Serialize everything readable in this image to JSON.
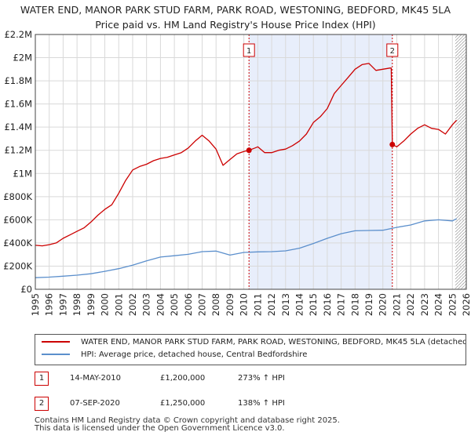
{
  "title_line1": "WATER END, MANOR PARK STUD FARM, PARK ROAD, WESTONING, BEDFORD, MK45 5LA",
  "title_line2": "Price paid vs. HM Land Registry's House Price Index (HPI)",
  "chart_data": {
    "type": "line",
    "title": "WATER END, MANOR PARK STUD FARM, PARK ROAD, WESTONING, BEDFORD, MK45 5LA — Price paid vs. HM Land Registry's House Price Index (HPI)",
    "xlabel": "",
    "ylabel": "",
    "xlim": [
      1995,
      2026
    ],
    "ylim": [
      0,
      2200000
    ],
    "grid": true,
    "x_ticks": [
      "1995",
      "1996",
      "1997",
      "1998",
      "1999",
      "2000",
      "2001",
      "2002",
      "2003",
      "2004",
      "2005",
      "2006",
      "2007",
      "2008",
      "2009",
      "2010",
      "2011",
      "2012",
      "2013",
      "2014",
      "2015",
      "2016",
      "2017",
      "2018",
      "2019",
      "2020",
      "2021",
      "2022",
      "2023",
      "2024",
      "2025",
      "2026"
    ],
    "y_ticks": [
      {
        "value": 0,
        "label": "£0"
      },
      {
        "value": 200000,
        "label": "£200K"
      },
      {
        "value": 400000,
        "label": "£400K"
      },
      {
        "value": 600000,
        "label": "£600K"
      },
      {
        "value": 800000,
        "label": "£800K"
      },
      {
        "value": 1000000,
        "label": "£1M"
      },
      {
        "value": 1200000,
        "label": "£1.2M"
      },
      {
        "value": 1400000,
        "label": "£1.4M"
      },
      {
        "value": 1600000,
        "label": "£1.6M"
      },
      {
        "value": 1800000,
        "label": "£1.8M"
      },
      {
        "value": 2000000,
        "label": "£2M"
      },
      {
        "value": 2200000,
        "label": "£2.2M"
      }
    ],
    "shaded_region": {
      "x_from": 2010.37,
      "x_to": 2020.68,
      "color": "#e8eefb"
    },
    "hatch_from_x": 2025.2,
    "series": [
      {
        "name": "WATER END, MANOR PARK STUD FARM, PARK ROAD, WESTONING, BEDFORD, MK45 5LA (detached house)",
        "color": "#cc0000",
        "x": [
          1995,
          1995.5,
          1996,
          1996.5,
          1997,
          1997.5,
          1998,
          1998.5,
          1999,
          1999.5,
          2000,
          2000.5,
          2001,
          2001.5,
          2002,
          2002.5,
          2003,
          2003.5,
          2004,
          2004.5,
          2005,
          2005.5,
          2006,
          2006.5,
          2007,
          2007.5,
          2008,
          2008.5,
          2009,
          2009.5,
          2010,
          2010.37,
          2010.8,
          2011,
          2011.5,
          2012,
          2012.5,
          2013,
          2013.5,
          2014,
          2014.5,
          2015,
          2015.5,
          2016,
          2016.5,
          2017,
          2017.5,
          2018,
          2018.5,
          2019,
          2019.5,
          2020,
          2020.5,
          2020.6,
          2020.68,
          2021,
          2021.5,
          2022,
          2022.5,
          2023,
          2023.5,
          2024,
          2024.5,
          2025,
          2025.3
        ],
        "values": [
          380000,
          375000,
          385000,
          400000,
          440000,
          470000,
          500000,
          530000,
          580000,
          640000,
          690000,
          730000,
          830000,
          940000,
          1030000,
          1060000,
          1080000,
          1110000,
          1130000,
          1140000,
          1160000,
          1180000,
          1220000,
          1280000,
          1330000,
          1280000,
          1210000,
          1070000,
          1120000,
          1170000,
          1190000,
          1200000,
          1220000,
          1230000,
          1180000,
          1180000,
          1200000,
          1210000,
          1240000,
          1280000,
          1340000,
          1440000,
          1490000,
          1560000,
          1690000,
          1760000,
          1830000,
          1900000,
          1940000,
          1950000,
          1890000,
          1900000,
          1910000,
          1910000,
          1250000,
          1230000,
          1280000,
          1340000,
          1390000,
          1420000,
          1390000,
          1380000,
          1340000,
          1420000,
          1460000
        ]
      },
      {
        "name": "HPI: Average price, detached house, Central Bedfordshire",
        "color": "#5b8fcc",
        "x": [
          1995,
          1996,
          1997,
          1998,
          1999,
          2000,
          2001,
          2002,
          2003,
          2004,
          2005,
          2006,
          2007,
          2008,
          2009,
          2010,
          2011,
          2012,
          2013,
          2014,
          2015,
          2016,
          2017,
          2018,
          2019,
          2020,
          2021,
          2022,
          2023,
          2024,
          2025,
          2025.3
        ],
        "values": [
          100000,
          105000,
          113000,
          122000,
          134000,
          155000,
          178000,
          208000,
          245000,
          278000,
          290000,
          302000,
          325000,
          330000,
          295000,
          318000,
          323000,
          325000,
          332000,
          355000,
          395000,
          440000,
          480000,
          505000,
          508000,
          510000,
          535000,
          555000,
          590000,
          600000,
          590000,
          610000
        ]
      }
    ],
    "annotations": [
      {
        "label": "1",
        "x": 2010.37,
        "value": 1200000
      },
      {
        "label": "2",
        "x": 2020.68,
        "value": 1250000
      }
    ]
  },
  "legend": {
    "items": [
      {
        "label": "WATER END, MANOR PARK STUD FARM, PARK ROAD, WESTONING, BEDFORD, MK45 5LA (detached house)",
        "color": "#cc0000"
      },
      {
        "label": "HPI: Average price, detached house, Central Bedfordshire",
        "color": "#5b8fcc"
      }
    ]
  },
  "sales": [
    {
      "num": "1",
      "date": "14-MAY-2010",
      "price": "£1,200,000",
      "hpi": "273% ↑ HPI"
    },
    {
      "num": "2",
      "date": "07-SEP-2020",
      "price": "£1,250,000",
      "hpi": "138% ↑ HPI"
    }
  ],
  "footer": {
    "line1": "Contains HM Land Registry data © Crown copyright and database right 2025.",
    "line2": "This data is licensed under the Open Government Licence v3.0."
  }
}
